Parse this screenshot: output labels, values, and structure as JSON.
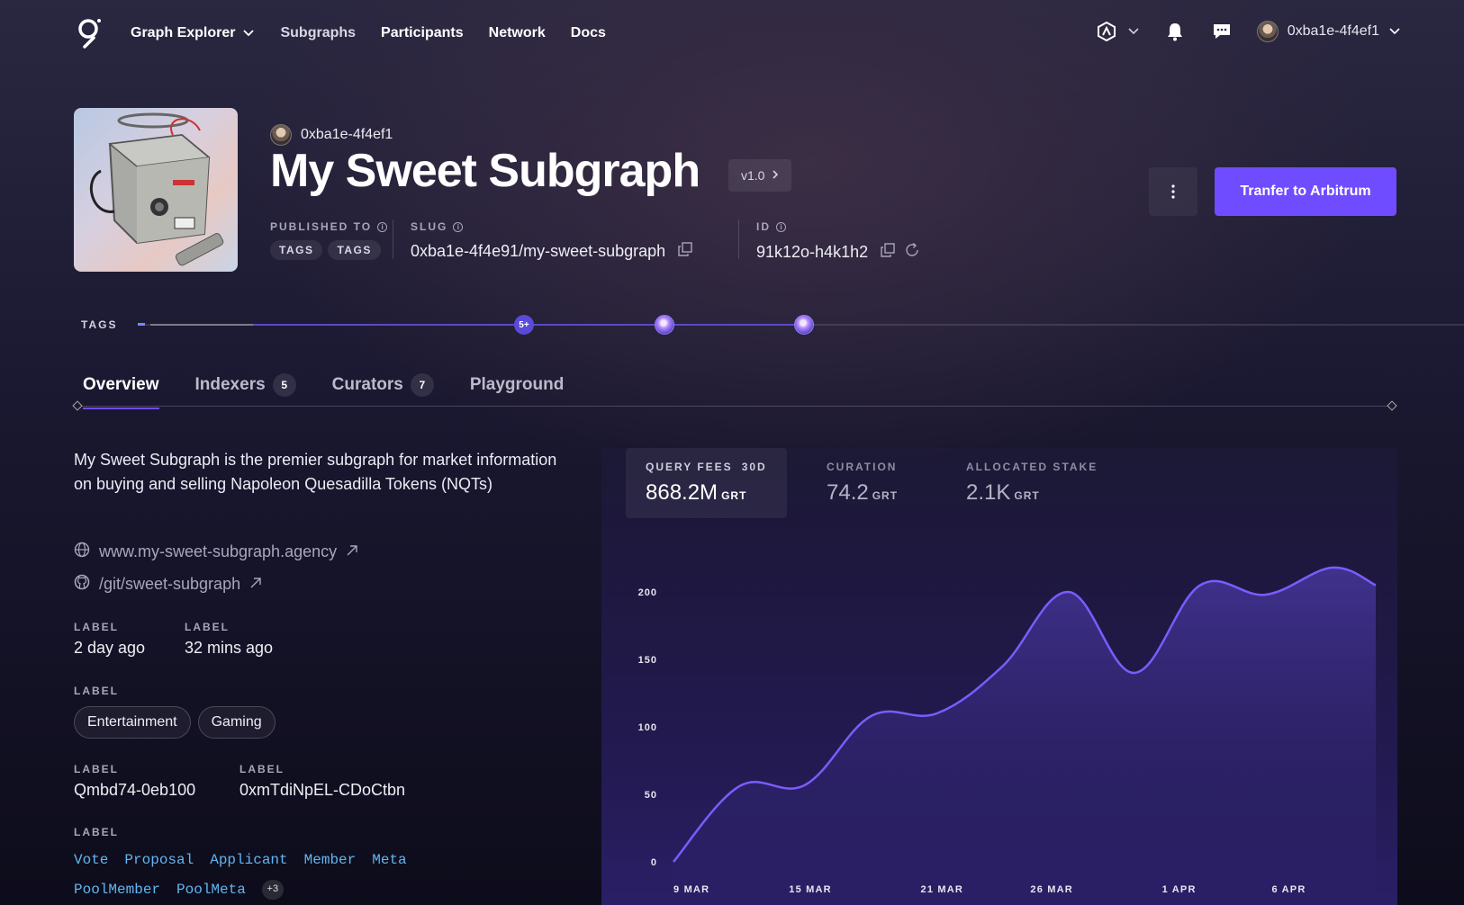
{
  "nav": {
    "links": [
      {
        "label": "Graph Explorer",
        "dropdown": true
      },
      {
        "label": "Subgraphs"
      },
      {
        "label": "Participants"
      },
      {
        "label": "Network"
      },
      {
        "label": "Docs"
      }
    ],
    "user": "0xba1e-4f4ef1"
  },
  "header": {
    "owner": "0xba1e-4f4ef1",
    "title": "My Sweet Subgraph",
    "version": "v1.0",
    "published_label": "PUBLISHED TO",
    "published_tags": [
      "TAGS",
      "TAGS"
    ],
    "slug_label": "SLUG",
    "slug_value": "0xba1e-4f4e91/my-sweet-subgraph",
    "id_label": "ID",
    "id_value": "91k12o-h4k1h2",
    "primary_button": "Tranfer to Arbitrum"
  },
  "timeline": {
    "label": "TAGS",
    "badge": "5+"
  },
  "tabs": [
    {
      "label": "Overview",
      "count": null,
      "active": true
    },
    {
      "label": "Indexers",
      "count": "5"
    },
    {
      "label": "Curators",
      "count": "7"
    },
    {
      "label": "Playground",
      "count": null
    }
  ],
  "overview": {
    "description": "My Sweet Subgraph is the premier subgraph for market information on buying and selling Napoleon Quesadilla Tokens (NQTs)",
    "website": "www.my-sweet-subgraph.agency",
    "repo": "/git/sweet-subgraph",
    "field1_label": "LABEL",
    "field1_value": "2 day ago",
    "field2_label": "LABEL",
    "field2_value": "32 mins ago",
    "categories_label": "LABEL",
    "categories": [
      "Entertainment",
      "Gaming"
    ],
    "field3_label": "LABEL",
    "field3_value": "Qmbd74-0eb100",
    "field4_label": "LABEL",
    "field4_value": "0xmTdiNpEL-CDoCtbn",
    "entities_label": "LABEL",
    "entities": [
      "Vote",
      "Proposal",
      "Applicant",
      "Member",
      "Meta",
      "PoolMember",
      "PoolMeta"
    ],
    "entities_more": "+3"
  },
  "stats": [
    {
      "label": "QUERY FEES",
      "period": "30D",
      "value": "868.2M",
      "unit": "GRT",
      "active": true
    },
    {
      "label": "CURATION",
      "period": "",
      "value": "74.2",
      "unit": "GRT"
    },
    {
      "label": "ALLOCATED STAKE",
      "period": "",
      "value": "2.1K",
      "unit": "GRT"
    }
  ],
  "colors": {
    "accent": "#6f4cff",
    "link": "#62b5f0",
    "chart_line": "#7a5cff"
  },
  "chart_data": {
    "type": "area",
    "title": "",
    "xlabel": "",
    "ylabel": "",
    "ylim": [
      0,
      200
    ],
    "yticks": [
      0,
      50,
      100,
      150,
      200
    ],
    "xticks": [
      "9 MAR",
      "15 MAR",
      "21 MAR",
      "26 MAR",
      "1 APR",
      "6 APR"
    ],
    "x_label_positions": [
      0,
      6,
      12,
      17,
      23,
      28
    ],
    "x": [
      0,
      3,
      6,
      9,
      12,
      15,
      18,
      21,
      24,
      27,
      30,
      32
    ],
    "values": [
      0,
      56,
      57,
      108,
      110,
      145,
      200,
      140,
      205,
      198,
      218,
      205
    ],
    "grid": false,
    "legend": "none"
  }
}
